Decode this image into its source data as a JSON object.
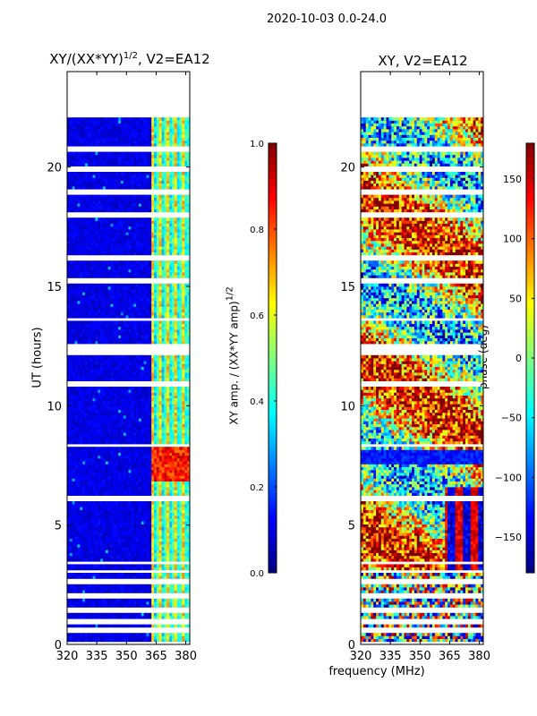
{
  "suptitle": "2020-10-03 0.0-24.0",
  "colors": {
    "jet": [
      "#00007f",
      "#0000ff",
      "#007fff",
      "#00ffff",
      "#7fff7f",
      "#ffff00",
      "#ff7f00",
      "#ff0000",
      "#7f0000"
    ]
  },
  "chart_data": [
    {
      "type": "heatmap",
      "title_text": "XY/(XX*YY)",
      "title_sup": "1/2",
      "title_suffix": ", V2=EA12",
      "xlabel": "",
      "ylabel": "UT (hours)",
      "xlim": [
        320,
        382
      ],
      "ylim": [
        0,
        24
      ],
      "xticks": [
        320,
        335,
        350,
        365,
        380
      ],
      "yticks": [
        0,
        5,
        10,
        15,
        20
      ],
      "data_range_hours": [
        0,
        22
      ],
      "quantity": "amplitude",
      "colorbar": {
        "label_text": "XY amp. / (XX*YY amp)",
        "label_sup": "1/2",
        "range": [
          0.0,
          1.0
        ],
        "ticks": [
          0.0,
          0.2,
          0.4,
          0.6,
          0.8,
          1.0
        ],
        "tick_labels": [
          "0.0",
          "0.2",
          "0.4",
          "0.6",
          "0.8",
          "1.0"
        ]
      }
    },
    {
      "type": "heatmap",
      "title_text": "XY, V2=EA12",
      "xlabel": "frequency (MHz)",
      "ylabel": "",
      "xlim": [
        320,
        382
      ],
      "ylim": [
        0,
        24
      ],
      "xticks": [
        320,
        335,
        350,
        365,
        380
      ],
      "yticks": [
        0,
        5,
        10,
        15,
        20
      ],
      "data_range_hours": [
        0,
        22
      ],
      "quantity": "phase",
      "colorbar": {
        "label_text": "phase (deg)",
        "range": [
          -180,
          180
        ],
        "ticks": [
          -150,
          -100,
          -50,
          0,
          50,
          100,
          150
        ],
        "tick_labels": [
          "−150",
          "−100",
          "−50",
          "0",
          "50",
          "100",
          "150"
        ]
      }
    }
  ]
}
